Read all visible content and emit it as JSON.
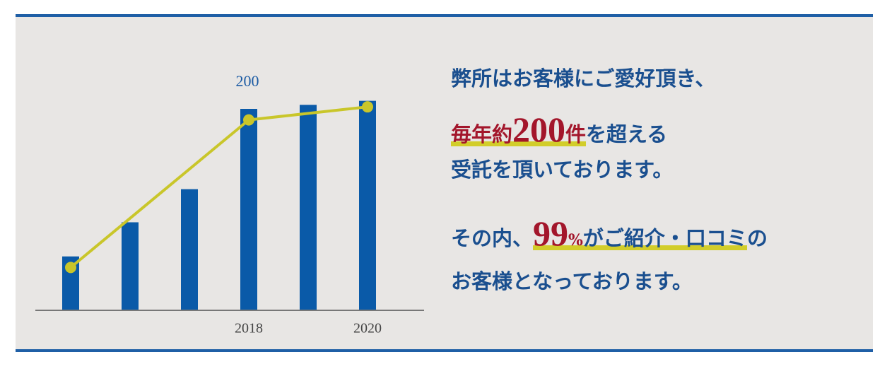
{
  "chart_data": {
    "type": "bar",
    "categories": [
      null,
      null,
      null,
      "2018",
      null,
      "2020"
    ],
    "x": [
      1,
      2,
      3,
      4,
      5,
      6
    ],
    "annotation": "200",
    "ylim": [
      0,
      200
    ],
    "series": [
      {
        "type": "bar",
        "color": "#0a5aa8",
        "values": [
          53,
          87,
          120,
          200,
          204,
          208
        ]
      },
      {
        "type": "line",
        "color": "#c9c62a",
        "x": [
          1,
          4,
          6
        ],
        "values": [
          42,
          189,
          202
        ]
      }
    ]
  },
  "message": {
    "line1": "弊所はお客様にご愛好頂き、",
    "line2": {
      "prefix": "毎年約",
      "number": "200",
      "unit": "件",
      "rest": "を超える"
    },
    "line3": "受託を頂いております。",
    "line4": {
      "lead": "その内、",
      "number": "99",
      "unit": "%",
      "rest": "がご紹介・口コミ",
      "tail": "の"
    },
    "line5": "お客様となっております。"
  }
}
